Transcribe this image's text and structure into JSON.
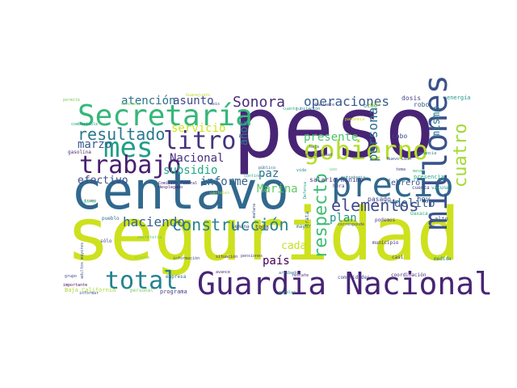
{
  "words": [
    {
      "text": "peso",
      "color": "#482475"
    },
    {
      "text": "seguridad",
      "color": "#cde11d"
    },
    {
      "text": "centavo",
      "color": "#31688e"
    },
    {
      "text": "Guardia Nacional",
      "color": "#482475"
    },
    {
      "text": "Secretaría",
      "color": "#35b779"
    },
    {
      "text": "precio",
      "color": "#31688e"
    },
    {
      "text": "millones",
      "color": "#3b528b"
    },
    {
      "text": "gobierno",
      "color": "#b5de2b"
    },
    {
      "text": "mes",
      "color": "#1f9e89"
    },
    {
      "text": "trabajo",
      "color": "#481f70"
    },
    {
      "text": "litro",
      "color": "#46337e"
    },
    {
      "text": "total",
      "color": "#26828e"
    },
    {
      "text": "resultado",
      "color": "#2a788e"
    },
    {
      "text": "elementos",
      "color": "#3e4a89"
    },
    {
      "text": "construcción",
      "color": "#26828e"
    },
    {
      "text": "respecto",
      "color": "#3dbc74"
    },
    {
      "text": "cuatro",
      "color": "#a2da37"
    },
    {
      "text": "Sonora",
      "color": "#472d7b"
    },
    {
      "text": "operaciones",
      "color": "#375a8c"
    },
    {
      "text": "persona",
      "color": "#2e6e8e"
    },
    {
      "text": "haciendo",
      "color": "#34618d"
    },
    {
      "text": "atención",
      "color": "#2c728e"
    },
    {
      "text": "asunto",
      "color": "#3e4989"
    },
    {
      "text": "Nacional",
      "color": "#472f7d"
    },
    {
      "text": "servicio",
      "color": "#d0e11c"
    },
    {
      "text": "subsidio",
      "color": "#21a685"
    },
    {
      "text": "Marina",
      "color": "#5ec962"
    },
    {
      "text": "marzo",
      "color": "#38588c"
    },
    {
      "text": "efectivo",
      "color": "#3e4c8a"
    },
    {
      "text": "paz",
      "color": "#2c738e"
    },
    {
      "text": "presente",
      "color": "#4ac16d"
    },
    {
      "text": "informe",
      "color": "#33638d"
    },
    {
      "text": "país",
      "color": "#440154"
    },
    {
      "text": "plan",
      "color": "#21918c"
    },
    {
      "text": "delito",
      "color": "#34618d"
    },
    {
      "text": "cada",
      "color": "#c8e020"
    },
    {
      "text": "mismo",
      "color": "#2a788e"
    },
    {
      "text": "años",
      "color": "#26828e"
    },
    {
      "text": "hoy",
      "color": "#3b528b"
    },
    {
      "text": "febrero",
      "color": "#38598c"
    },
    {
      "text": "salario mínimo",
      "color": "#453781"
    },
    {
      "text": "pasado",
      "color": "#424086"
    },
    {
      "text": "gasolina",
      "color": "#472a7a"
    },
    {
      "text": "trata",
      "color": "#3b528b"
    },
    {
      "text": "mayor",
      "color": "#2d708e"
    },
    {
      "text": "robo",
      "color": "#38588c"
    },
    {
      "text": "energía",
      "color": "#1f9a8a"
    },
    {
      "text": "cabo",
      "color": "#3f4788"
    },
    {
      "text": "dosis",
      "color": "#414487"
    },
    {
      "text": "ocho",
      "color": "#21918c"
    },
    {
      "text": "hora",
      "color": "#433e85"
    },
    {
      "text": "pueblo",
      "color": "#31688e"
    },
    {
      "text": "sólo",
      "color": "#404688"
    },
    {
      "text": "empresa",
      "color": "#2f6c8e"
    },
    {
      "text": "programa",
      "color": "#443a83"
    },
    {
      "text": "Baja California",
      "color": "#a8db34"
    },
    {
      "text": "personal",
      "color": "#6ccd5a"
    },
    {
      "text": "toda",
      "color": "#46327e"
    },
    {
      "text": "semana",
      "color": "#3e4a89"
    },
    {
      "text": "podemos",
      "color": "#443983"
    },
    {
      "text": "alto",
      "color": "#3b528b"
    },
    {
      "text": "Oaxaca",
      "color": "#2db27d"
    },
    {
      "text": "casi",
      "color": "#453581"
    },
    {
      "text": "medida",
      "color": "#287d8e"
    },
    {
      "text": "coordinación",
      "color": "#482878"
    },
    {
      "text": "comunidades",
      "color": "#404588"
    },
    {
      "text": "municipio",
      "color": "#46307e"
    },
    {
      "text": "cuenta",
      "color": "#3f4889"
    },
    {
      "text": "vacuna",
      "color": "#1f988b"
    },
    {
      "text": "presencia",
      "color": "#22a884"
    },
    {
      "text": "Guanajuato",
      "color": "#bddf26"
    },
    {
      "text": "Comisión Federal",
      "color": "#482173"
    },
    {
      "text": "Gabinete",
      "color": "#404588"
    },
    {
      "text": "pandemia",
      "color": "#d8e219"
    },
    {
      "text": "estrategia",
      "color": "#2a788e"
    },
    {
      "text": "adultos mayores",
      "color": "#39568c"
    },
    {
      "text": "información",
      "color": "#3f4788"
    },
    {
      "text": "pensiones",
      "color": "#424186"
    },
    {
      "text": "situación",
      "color": "#48186a"
    },
    {
      "text": "desplegado",
      "color": "#471365"
    },
    {
      "text": "planta",
      "color": "#8fd744"
    },
    {
      "text": "grupo",
      "color": "#3e4989"
    },
    {
      "text": "importante",
      "color": "#46085c"
    },
    {
      "text": "Nuevo León",
      "color": "#3b528b"
    },
    {
      "text": "rescate",
      "color": "#481b6d"
    },
    {
      "text": "mañana",
      "color": "#3b528b"
    },
    {
      "text": "Defensa",
      "color": "#20a386"
    },
    {
      "text": "llegar",
      "color": "#2d708e"
    },
    {
      "text": "ganancia",
      "color": "#2a778e"
    },
    {
      "text": "tema",
      "color": "#433d84"
    },
    {
      "text": "meses",
      "color": "#3dbc74"
    },
    {
      "text": "seis",
      "color": "#414287"
    },
    {
      "text": "concreto",
      "color": "#7ad151"
    },
    {
      "text": "combustible",
      "color": "#1f9f88"
    },
    {
      "text": "tramo",
      "color": "#472d7b"
    },
    {
      "text": "parte",
      "color": "#4f9"
    },
    {
      "text": "igual",
      "color": "#3c4f8a"
    },
    {
      "text": "informar",
      "color": "#3a548c"
    },
    {
      "text": "cuanto",
      "color": "#27ad81"
    },
    {
      "text": "público",
      "color": "#2e6e8e"
    },
    {
      "text": "vida",
      "color": "#27808e"
    },
    {
      "text": "punto",
      "color": "#d2e21b"
    },
    {
      "text": "uso",
      "color": "#5cc863"
    },
    {
      "text": "continua",
      "color": "#26ad81"
    },
    {
      "text": "cárteles",
      "color": "#a5db36"
    },
    {
      "text": "avance",
      "color": "#472f7d"
    },
    {
      "text": "arribado",
      "color": "#2c738e"
    },
    {
      "text": "resto",
      "color": "#3e4c8a"
    },
    {
      "text": "escalar",
      "color": "#2ab07f"
    },
    {
      "text": "Ciudad",
      "color": "#3e4989"
    },
    {
      "text": "permite",
      "color": "#75d054"
    },
    {
      "text": "corresponde",
      "color": "#3c508b"
    },
    {
      "text": "secretaria",
      "color": "#5ec962"
    },
    {
      "text": "jubilación",
      "color": "#2a788e"
    },
    {
      "text": "baja",
      "color": "#31688e"
    }
  ]
}
